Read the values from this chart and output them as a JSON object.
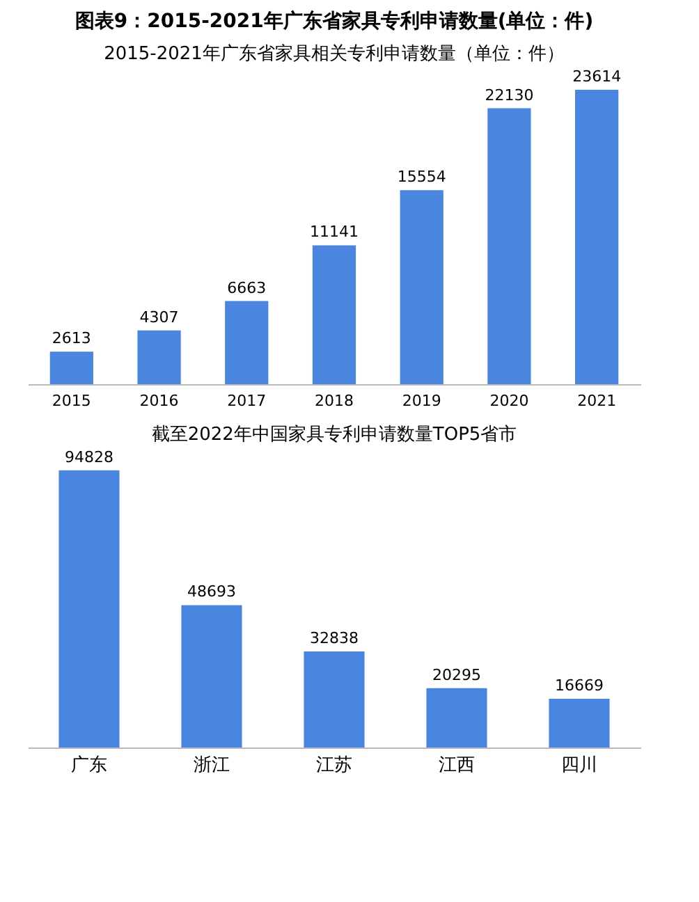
{
  "chart_data": [
    {
      "type": "bar",
      "title": "图表9：2015-2021年广东省家具专利申请数量(单位：件)",
      "subtitle": "2015-2021年广东省家具相关专利申请数量（单位：件）",
      "categories": [
        "2015",
        "2016",
        "2017",
        "2018",
        "2019",
        "2020",
        "2021"
      ],
      "values": [
        2613,
        4307,
        6663,
        11141,
        15554,
        22130,
        23614
      ],
      "color": "#4a86e0",
      "data_labels": true
    },
    {
      "type": "bar",
      "title": "截至2022年中国家具专利申请数量TOP5省市",
      "categories": [
        "广东",
        "浙江",
        "江苏",
        "江西",
        "四川"
      ],
      "values": [
        94828,
        48693,
        32838,
        20295,
        16669
      ],
      "color": "#4a86e0",
      "data_labels": true
    }
  ]
}
